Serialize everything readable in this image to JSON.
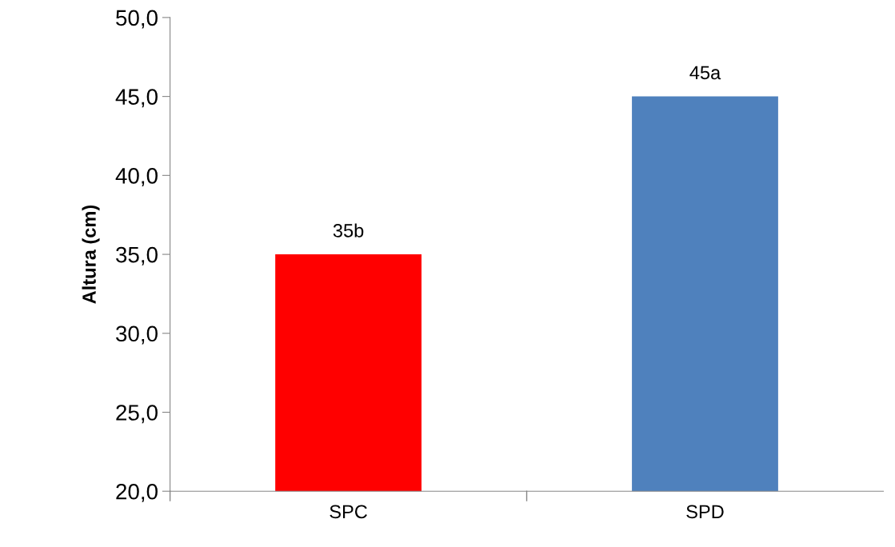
{
  "chart_data": {
    "type": "bar",
    "ylabel": "Altura (cm)",
    "categories": [
      "SPC",
      "SPD"
    ],
    "values": [
      35,
      45
    ],
    "colors": [
      "#ff0000",
      "#4f81bd"
    ],
    "value_labels": [
      "35b",
      "45a"
    ],
    "ylim": [
      20,
      50
    ],
    "yticks": [
      {
        "value": 20,
        "label": "20,0"
      },
      {
        "value": 25,
        "label": "25,0"
      },
      {
        "value": 30,
        "label": "30,0"
      },
      {
        "value": 35,
        "label": "35,0"
      },
      {
        "value": 40,
        "label": "40,0"
      },
      {
        "value": 45,
        "label": "45,0"
      },
      {
        "value": 50,
        "label": "50,0"
      }
    ],
    "grid": false,
    "legend": false
  }
}
